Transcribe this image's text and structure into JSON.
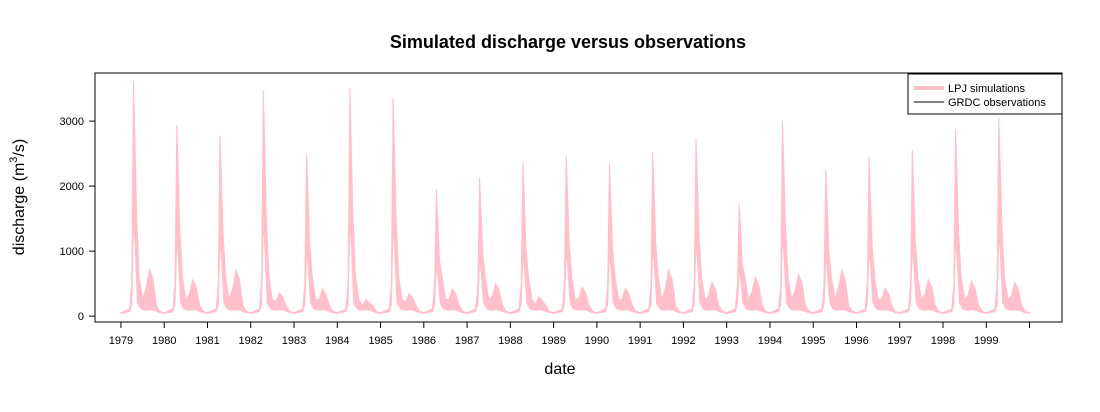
{
  "chart_data": {
    "type": "area",
    "title": "Simulated discharge versus observations",
    "xlabel": "date",
    "ylabel": "discharge (m³/s)",
    "ylabel_main": "discharge (m",
    "ylabel_sup": "3",
    "ylabel_tail": "/s)",
    "ylim": [
      -90,
      3740
    ],
    "yticks": [
      0,
      1000,
      2000,
      3000
    ],
    "x_range_years": [
      1978.4,
      2000.75
    ],
    "xticks": [
      "1979",
      "1980",
      "1981",
      "1982",
      "1983",
      "1984",
      "1985",
      "1986",
      "1987",
      "1988",
      "1989",
      "1990",
      "1991",
      "1992",
      "1993",
      "1994",
      "1995",
      "1996",
      "1997",
      "1998",
      "1999"
    ],
    "grid": false,
    "legend_position": "top-right",
    "series": [
      {
        "name": "LPJ simulations",
        "style": "filled band (simulation range)",
        "color": "#ffc0cb",
        "band": [
          {
            "x": 1979.0,
            "low": 55,
            "high": 65
          },
          {
            "x": 1979.22,
            "low": 90,
            "high": 200
          },
          {
            "x": 1979.3,
            "low": 300,
            "high": 3610
          },
          {
            "x": 1979.4,
            "low": 110,
            "high": 900
          },
          {
            "x": 1979.55,
            "low": 80,
            "high": 300
          },
          {
            "x": 1979.7,
            "low": 120,
            "high": 720
          },
          {
            "x": 1979.85,
            "low": 70,
            "high": 200
          },
          {
            "x": 2000.0,
            "low": 45,
            "high": 60
          }
        ],
        "annual_peaks": [
          {
            "year": "1979",
            "peak": 3610
          },
          {
            "year": "1980",
            "peak": 2940
          },
          {
            "year": "1981",
            "peak": 2780
          },
          {
            "year": "1982",
            "peak": 3480
          },
          {
            "year": "1983",
            "peak": 2500
          },
          {
            "year": "1984",
            "peak": 3510
          },
          {
            "year": "1985",
            "peak": 3350
          },
          {
            "year": "1986",
            "peak": 1950
          },
          {
            "year": "1987",
            "peak": 2130
          },
          {
            "year": "1988",
            "peak": 2380
          },
          {
            "year": "1989",
            "peak": 2460
          },
          {
            "year": "1990",
            "peak": 2340
          },
          {
            "year": "1991",
            "peak": 2520
          },
          {
            "year": "1992",
            "peak": 2740
          },
          {
            "year": "1993",
            "peak": 1730
          },
          {
            "year": "1994",
            "peak": 3010
          },
          {
            "year": "1995",
            "peak": 2250
          },
          {
            "year": "1996",
            "peak": 2450
          },
          {
            "year": "1997",
            "peak": 2560
          },
          {
            "year": "1998",
            "peak": 2860
          },
          {
            "year": "1999",
            "peak": 3050
          }
        ],
        "annual_secondary_peaks": [
          {
            "year": "1979",
            "value": 720
          },
          {
            "year": "1980",
            "value": 560
          },
          {
            "year": "1981",
            "value": 700
          },
          {
            "year": "1982",
            "value": 360
          },
          {
            "year": "1983",
            "value": 420
          },
          {
            "year": "1984",
            "value": 260
          },
          {
            "year": "1985",
            "value": 350
          },
          {
            "year": "1986",
            "value": 420
          },
          {
            "year": "1987",
            "value": 500
          },
          {
            "year": "1988",
            "value": 300
          },
          {
            "year": "1989",
            "value": 450
          },
          {
            "year": "1990",
            "value": 430
          },
          {
            "year": "1991",
            "value": 700
          },
          {
            "year": "1992",
            "value": 520
          },
          {
            "year": "1993",
            "value": 600
          },
          {
            "year": "1994",
            "value": 640
          },
          {
            "year": "1995",
            "value": 700
          },
          {
            "year": "1996",
            "value": 430
          },
          {
            "year": "1997",
            "value": 560
          },
          {
            "year": "1998",
            "value": 540
          },
          {
            "year": "1999",
            "value": 520
          }
        ]
      },
      {
        "name": "GRDC observations",
        "style": "line",
        "color": "#000000",
        "values": []
      }
    ]
  }
}
